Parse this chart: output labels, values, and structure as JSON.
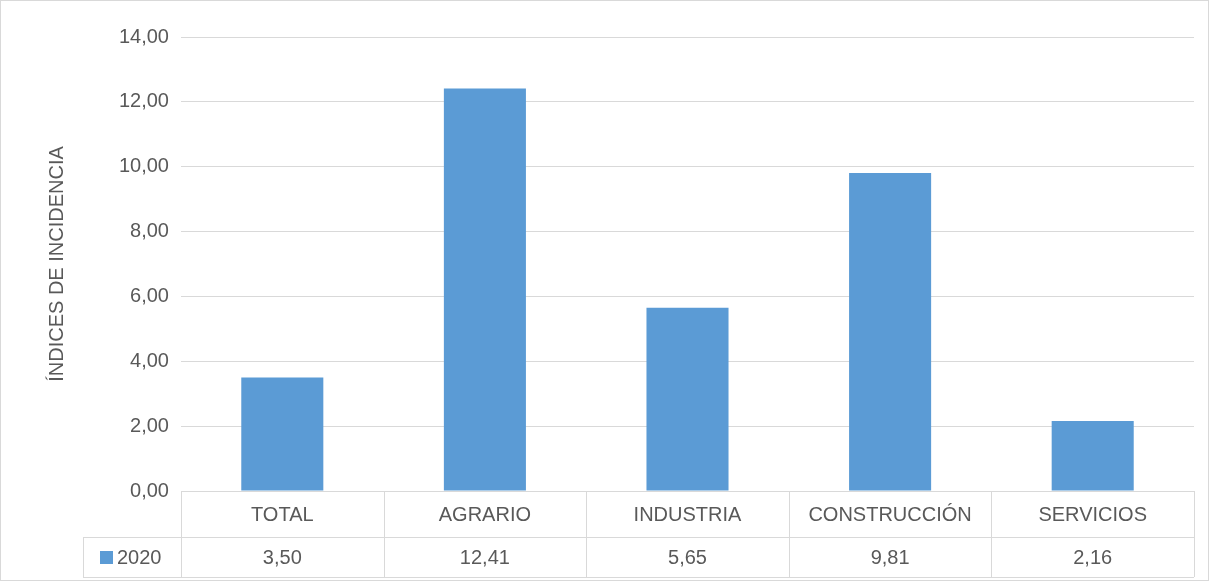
{
  "chart_data": {
    "type": "bar",
    "ylabel": "ÍNDICES DE INCIDENCIA",
    "categories": [
      "TOTAL",
      "AGRARIO",
      "INDUSTRIA",
      "CONSTRUCCIÓN",
      "SERVICIOS"
    ],
    "series": [
      {
        "name": "2020",
        "color": "#5b9bd5",
        "values": [
          3.5,
          12.41,
          5.65,
          9.81,
          2.16
        ],
        "value_labels": [
          "3,50",
          "12,41",
          "5,65",
          "9,81",
          "2,16"
        ]
      }
    ],
    "ylim": [
      0,
      14
    ],
    "yticks": [
      {
        "value": 0,
        "label": "0,00"
      },
      {
        "value": 2,
        "label": "2,00"
      },
      {
        "value": 4,
        "label": "4,00"
      },
      {
        "value": 6,
        "label": "6,00"
      },
      {
        "value": 8,
        "label": "8,00"
      },
      {
        "value": 10,
        "label": "10,00"
      },
      {
        "value": 12,
        "label": "12,00"
      },
      {
        "value": 14,
        "label": "14,00"
      }
    ],
    "grid": "y",
    "legend": "bottom"
  }
}
